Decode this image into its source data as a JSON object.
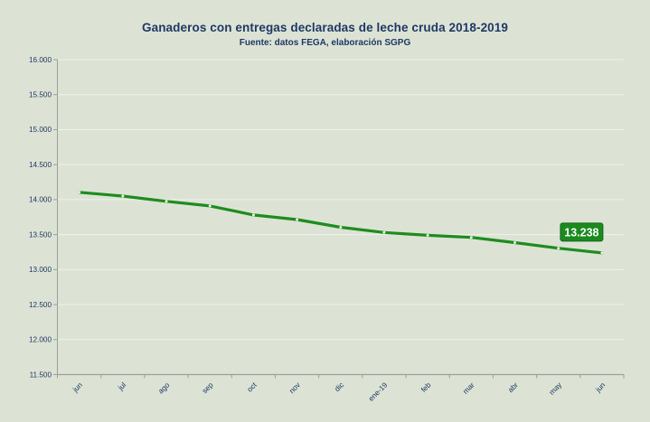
{
  "chart_data": {
    "type": "line",
    "title": "Ganaderos con entregas declaradas de leche cruda 2018-2019",
    "subtitle": "Fuente: datos FEGA, elaboración SGPG",
    "categories": [
      "jun",
      "jul",
      "ago",
      "sep",
      "oct",
      "nov",
      "dic",
      "ene-19",
      "feb",
      "mar",
      "abr",
      "may",
      "jun"
    ],
    "values": [
      14105,
      14050,
      13975,
      13910,
      13780,
      13715,
      13605,
      13530,
      13490,
      13460,
      13385,
      13305,
      13238
    ],
    "ylim": [
      11500,
      16000
    ],
    "ytick_step": 500,
    "ytick_labels": [
      "11.500",
      "12.000",
      "12.500",
      "13.000",
      "13.500",
      "14.000",
      "14.500",
      "15.000",
      "15.500",
      "16.000"
    ],
    "grid": "horizontal",
    "legend": "none",
    "annotation": {
      "category_index": 12,
      "label": "13.238"
    },
    "colors": {
      "background": "#dce3d5",
      "title_text": "#1f3864",
      "axis_text": "#1f3864",
      "axis_line": "#98a098",
      "gridline": "#eef2e9",
      "line": "#1e8c1e",
      "marker": "#e8efe0",
      "annotation_bg": "#1b8a1f",
      "annotation_border": "#11691a",
      "annotation_text": "#ffffff"
    }
  }
}
